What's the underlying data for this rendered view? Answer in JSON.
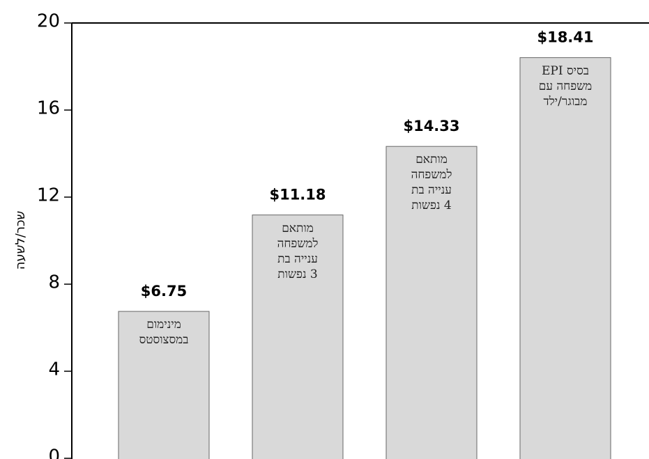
{
  "chart_data": {
    "type": "bar",
    "y_label": "שכר/לשעה",
    "categories": [
      "מינימום\nבמסצוסטס",
      "מותאם\nלמשפחה\nענייה בת\n3 נפשות",
      "מותאם\nלמשפחה\nענייה בת\n4 נפשות",
      "בסיס EPI\nמשפחה עם\nמבוגר/ילד"
    ],
    "values": [
      6.75,
      11.18,
      14.33,
      18.41
    ],
    "value_labels": [
      "$6.75",
      "$11.18",
      "$14.33",
      "$18.41"
    ],
    "color": "#d9d9d9",
    "ylim": [
      0,
      20
    ],
    "yticks": [
      0,
      4,
      8,
      12,
      16,
      20
    ]
  }
}
